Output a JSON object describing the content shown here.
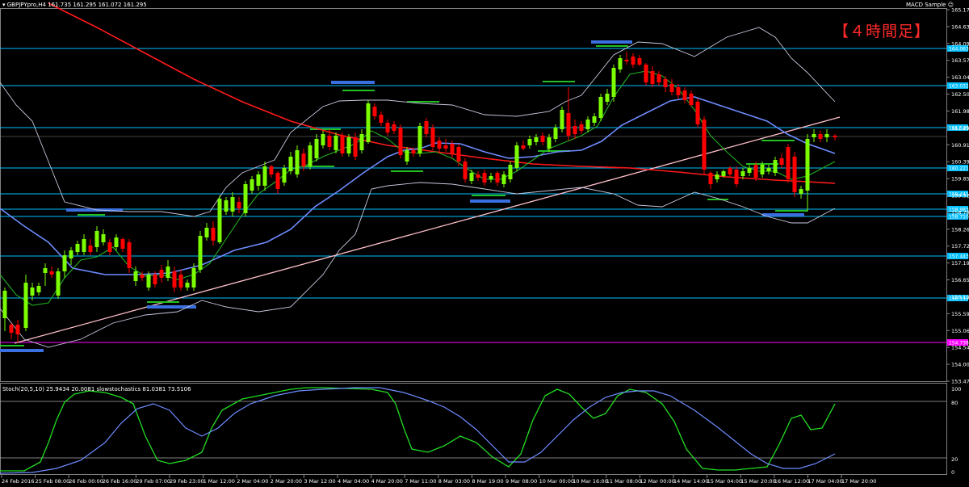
{
  "header": {
    "symbol_line": "GBPJPYpro,H4  161.735 161.295 161.072 161.295",
    "indicator_name": "MACD Sample",
    "title_jp": "【４時間足】",
    "stoch_line": "Stoch(20,5,10) 25.9434 20.0081  slowstochastics 81.0381 73.5106"
  },
  "price_axis": {
    "ticks": [
      "165.175",
      "164.635",
      "164.095",
      "163.570",
      "163.045",
      "162.505",
      "161.980",
      "161.295",
      "160.915",
      "160.390",
      "159.850",
      "159.325",
      "158.785",
      "158.260",
      "157.720",
      "157.195",
      "156.655",
      "156.130",
      "155.590",
      "155.065",
      "154.540",
      "154.000",
      "153.475"
    ]
  },
  "level_tags": [
    "164.063",
    "163.032",
    "161.545",
    "160.221",
    "159.441",
    "158.983",
    "158.710",
    "157.443",
    "156.159",
    "154.738"
  ],
  "stoch_axis": [
    "100",
    "80",
    "20",
    "0"
  ],
  "time_axis": [
    "24 Feb 2016",
    "25 Feb 08:00",
    "26 Feb 00:00",
    "26 Feb 16:00",
    "29 Feb 07:00",
    "29 Feb 23:00",
    "1 Mar 12:00",
    "2 Mar 04:00",
    "2 Mar 20:00",
    "3 Mar 12:00",
    "4 Mar 04:00",
    "4 Mar 20:00",
    "7 Mar 11:00",
    "8 Mar 03:00",
    "8 Mar 19:00",
    "9 Mar 08:00",
    "10 Mar 00:00",
    "10 Mar 16:00",
    "11 Mar 08:00",
    "12 Mar 00:00",
    "14 Mar 14:00",
    "15 Mar 04:00",
    "15 Mar 20:00",
    "16 Mar 12:00",
    "17 Mar 04:00",
    "17 Mar 20:00"
  ],
  "colors": {
    "bull": "#7CFC00",
    "bear": "#FF0000",
    "level_line": "#00BFFF",
    "support_line": "#FF00FF",
    "ma_long": "#FF1A1A",
    "ma_mid": "#6E8CFF",
    "ma_short": "#22B022",
    "bollinger": "#C8C8E0",
    "trendline": "#FFC0CB",
    "zone_blue": "#3A6FE0",
    "zone_green": "#22C022",
    "stoch_main": "#22DD22",
    "stoch_signal": "#6E8CFF"
  }
}
